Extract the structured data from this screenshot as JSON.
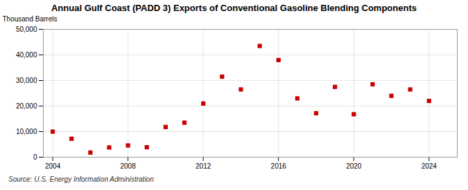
{
  "chart_data": {
    "type": "scatter",
    "title": "Annual Gulf Coast (PADD 3) Exports of Conventional Gasoline Blending Components",
    "ylabel": "Thousand Barrels",
    "source": "Source: U.S. Energy Information Administration",
    "x": [
      2004,
      2005,
      2006,
      2007,
      2008,
      2009,
      2010,
      2011,
      2012,
      2013,
      2014,
      2015,
      2016,
      2017,
      2018,
      2019,
      2020,
      2021,
      2022,
      2023,
      2024
    ],
    "values": [
      10000,
      7200,
      1800,
      3800,
      4600,
      3900,
      11800,
      13500,
      21000,
      31500,
      26500,
      43500,
      38000,
      23000,
      17200,
      27500,
      16800,
      28500,
      24000,
      26500,
      22000
    ],
    "color": "#cc0000",
    "marker": "square",
    "xlim": [
      2003.5,
      2025.5
    ],
    "xticks": [
      2004,
      2008,
      2012,
      2016,
      2020,
      2024
    ],
    "ylim": [
      0,
      50000
    ],
    "yticks": [
      0,
      {
        "value": 10000,
        "label": "10,000"
      },
      {
        "value": 20000,
        "label": "20,000"
      },
      {
        "value": 30000,
        "label": "30,000"
      },
      {
        "value": 40000,
        "label": "40,000"
      },
      {
        "value": 50000,
        "label": "50,000"
      }
    ],
    "grid": true
  }
}
